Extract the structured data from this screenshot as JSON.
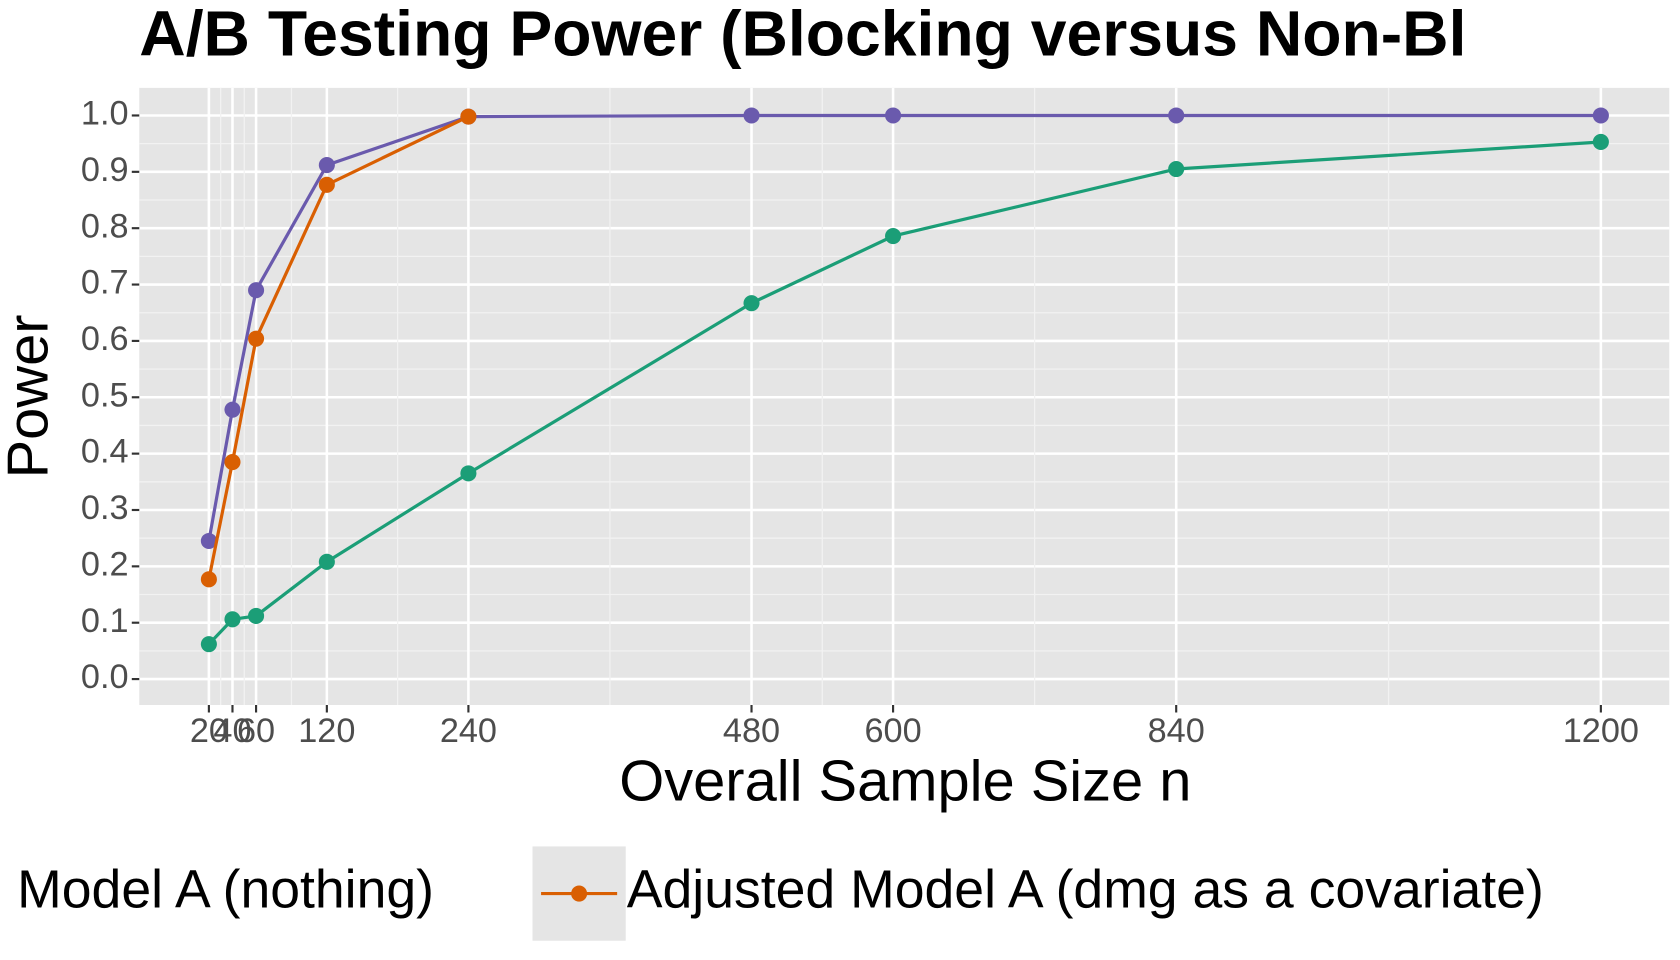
{
  "chart_data": {
    "type": "line",
    "title": "A/B Testing Power (Blocking versus Non-Bl",
    "x_label": "Overall Sample Size n",
    "y_label": "Power",
    "x": [
      20,
      40,
      60,
      120,
      240,
      480,
      600,
      840,
      1200
    ],
    "series": [
      {
        "color": "#6a5aad",
        "values": [
          0.245,
          0.478,
          0.69,
          0.912,
          0.998,
          1.0,
          1.0,
          1.0,
          1.0
        ]
      },
      {
        "name": "Adjusted Model A (dmg as a covariate)",
        "color": "#d95f02",
        "values": [
          0.177,
          0.385,
          0.604,
          0.877,
          0.998,
          null,
          null,
          null,
          null
        ]
      },
      {
        "name": "Model A (nothing)",
        "color": "#1b9e77",
        "values": [
          0.062,
          0.106,
          0.112,
          0.208,
          0.365,
          0.667,
          0.786,
          0.905,
          0.953
        ]
      }
    ],
    "xlim": [
      -39,
      1258
    ],
    "ylim": [
      -0.046,
      1.049
    ],
    "xticks": [
      20,
      40,
      60,
      120,
      240,
      480,
      600,
      840,
      1200
    ],
    "yticks": [
      {
        "value": 0,
        "label": "0.0"
      },
      {
        "value": 0.1,
        "label": "0.1"
      },
      {
        "value": 0.2,
        "label": "0.2"
      },
      {
        "value": 0.3,
        "label": "0.3"
      },
      {
        "value": 0.4,
        "label": "0.4"
      },
      {
        "value": 0.5,
        "label": "0.5"
      },
      {
        "value": 0.6,
        "label": "0.6"
      },
      {
        "value": 0.7,
        "label": "0.7"
      },
      {
        "value": 0.8,
        "label": "0.8"
      },
      {
        "value": 0.9,
        "label": "0.9"
      },
      {
        "value": 1.0,
        "label": "1.0"
      }
    ],
    "grid": true
  }
}
